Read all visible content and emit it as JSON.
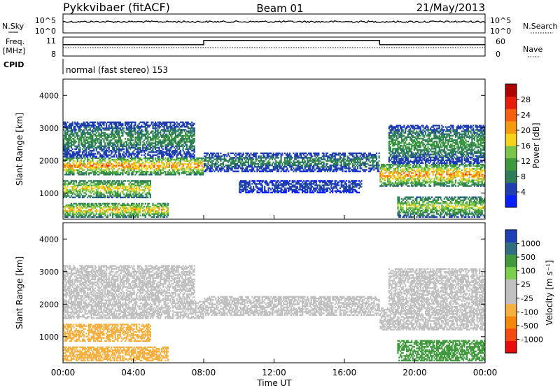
{
  "header": {
    "station": "Pykkvibaer (fitACF)",
    "beam": "Beam 01",
    "date": "21/May/2013"
  },
  "noise_panel": {
    "left_label": "N.Sky",
    "right_label": "N.Search",
    "left_ticks": [
      "10^5",
      "10^0"
    ],
    "right_ticks": [
      "10^5",
      "10^0"
    ]
  },
  "freq_panel": {
    "left_label_1": "Freq.",
    "left_label_2": "[MHz]",
    "right_label": "Nave",
    "left_ticks": [
      "8",
      "11"
    ],
    "right_ticks": [
      "60",
      "0"
    ],
    "freq_mhz": [
      {
        "t": 0.0,
        "f": 10.4
      },
      {
        "t": 8.0,
        "f": 10.4
      },
      {
        "t": 8.0,
        "f": 11.3
      },
      {
        "t": 18.0,
        "f": 11.3
      },
      {
        "t": 18.0,
        "f": 10.4
      },
      {
        "t": 24.0,
        "f": 10.4
      }
    ]
  },
  "cpid": {
    "label": "CPID",
    "mode": "normal (fast stereo) 153"
  },
  "colors": {
    "power_scale": [
      "#0a1fff",
      "#1f3fb0",
      "#2d7d5a",
      "#3c9a3c",
      "#7ac64a",
      "#f5d31a",
      "#f59a10",
      "#f56010",
      "#e81c0c",
      "#b00000"
    ],
    "velocity_scale": [
      "#e80c0c",
      "#f54a10",
      "#f5870a",
      "#f5b040",
      "#c0c0c0",
      "#c0c0c0",
      "#7ad04a",
      "#3f9a3c",
      "#2f6f80",
      "#1f3fb8"
    ]
  },
  "chart_data": [
    {
      "type": "heatmap",
      "quantity": "Power",
      "ylabel": "Slant Range [km]",
      "xlabel": "Time UT",
      "colorbar_label": "Power [dB]",
      "colorbar_ticks": [
        "4",
        "8",
        "12",
        "16",
        "20",
        "24",
        "28"
      ],
      "colorbar_range": [
        0,
        32
      ],
      "xlim": [
        0,
        24
      ],
      "ylim": [
        200,
        4500
      ],
      "x_ticks": [
        "00:00",
        "04:00",
        "08:00",
        "12:00",
        "16:00",
        "20:00",
        "00:00"
      ],
      "y_ticks": [
        "1000",
        "2000",
        "3000",
        "4000"
      ],
      "echo_bands": [
        {
          "t0": 0.0,
          "t1": 8.0,
          "r0": 1550,
          "r1": 2100,
          "peak": 22
        },
        {
          "t0": 0.0,
          "t1": 7.5,
          "r0": 2100,
          "r1": 3200,
          "peak": 10
        },
        {
          "t0": 0.0,
          "t1": 5.0,
          "r0": 850,
          "r1": 1400,
          "peak": 18
        },
        {
          "t0": 0.0,
          "t1": 6.0,
          "r0": 250,
          "r1": 700,
          "peak": 20
        },
        {
          "t0": 8.0,
          "t1": 18.0,
          "r0": 1650,
          "r1": 2250,
          "peak": 9
        },
        {
          "t0": 10.0,
          "t1": 17.0,
          "r0": 1000,
          "r1": 1400,
          "peak": 6
        },
        {
          "t0": 18.0,
          "t1": 24.0,
          "r0": 1200,
          "r1": 1900,
          "peak": 22
        },
        {
          "t0": 18.5,
          "t1": 24.0,
          "r0": 1900,
          "r1": 3100,
          "peak": 11
        },
        {
          "t0": 19.0,
          "t1": 24.0,
          "r0": 250,
          "r1": 900,
          "peak": 16
        }
      ]
    },
    {
      "type": "heatmap",
      "quantity": "Velocity",
      "ylabel": "Slant Range [km]",
      "xlabel": "Time UT",
      "colorbar_label": "Velocity [m s⁻¹]",
      "colorbar_ticks": [
        "-1000",
        "-500",
        "-100",
        "-25",
        "25",
        "100",
        "500",
        "1000"
      ],
      "colorbar_range": [
        -1200,
        1200
      ],
      "xlim": [
        0,
        24
      ],
      "ylim": [
        200,
        4500
      ],
      "x_ticks": [
        "00:00",
        "04:00",
        "08:00",
        "12:00",
        "16:00",
        "20:00",
        "00:00"
      ],
      "y_ticks": [
        "1000",
        "2000",
        "3000",
        "4000"
      ],
      "echo_bands": [
        {
          "t0": 0.0,
          "t1": 8.0,
          "r0": 1550,
          "r1": 2100,
          "v": 0
        },
        {
          "t0": 0.0,
          "t1": 7.5,
          "r0": 2100,
          "r1": 3200,
          "v": 0
        },
        {
          "t0": 0.0,
          "t1": 5.0,
          "r0": 850,
          "r1": 1400,
          "v": -300
        },
        {
          "t0": 0.0,
          "t1": 6.0,
          "r0": 250,
          "r1": 700,
          "v": -250
        },
        {
          "t0": 8.0,
          "t1": 18.0,
          "r0": 1650,
          "r1": 2250,
          "v": 0
        },
        {
          "t0": 18.0,
          "t1": 24.0,
          "r0": 1200,
          "r1": 1900,
          "v": 0
        },
        {
          "t0": 18.5,
          "t1": 24.0,
          "r0": 1900,
          "r1": 3100,
          "v": 0
        },
        {
          "t0": 19.0,
          "t1": 24.0,
          "r0": 250,
          "r1": 900,
          "v": 300
        }
      ]
    }
  ]
}
